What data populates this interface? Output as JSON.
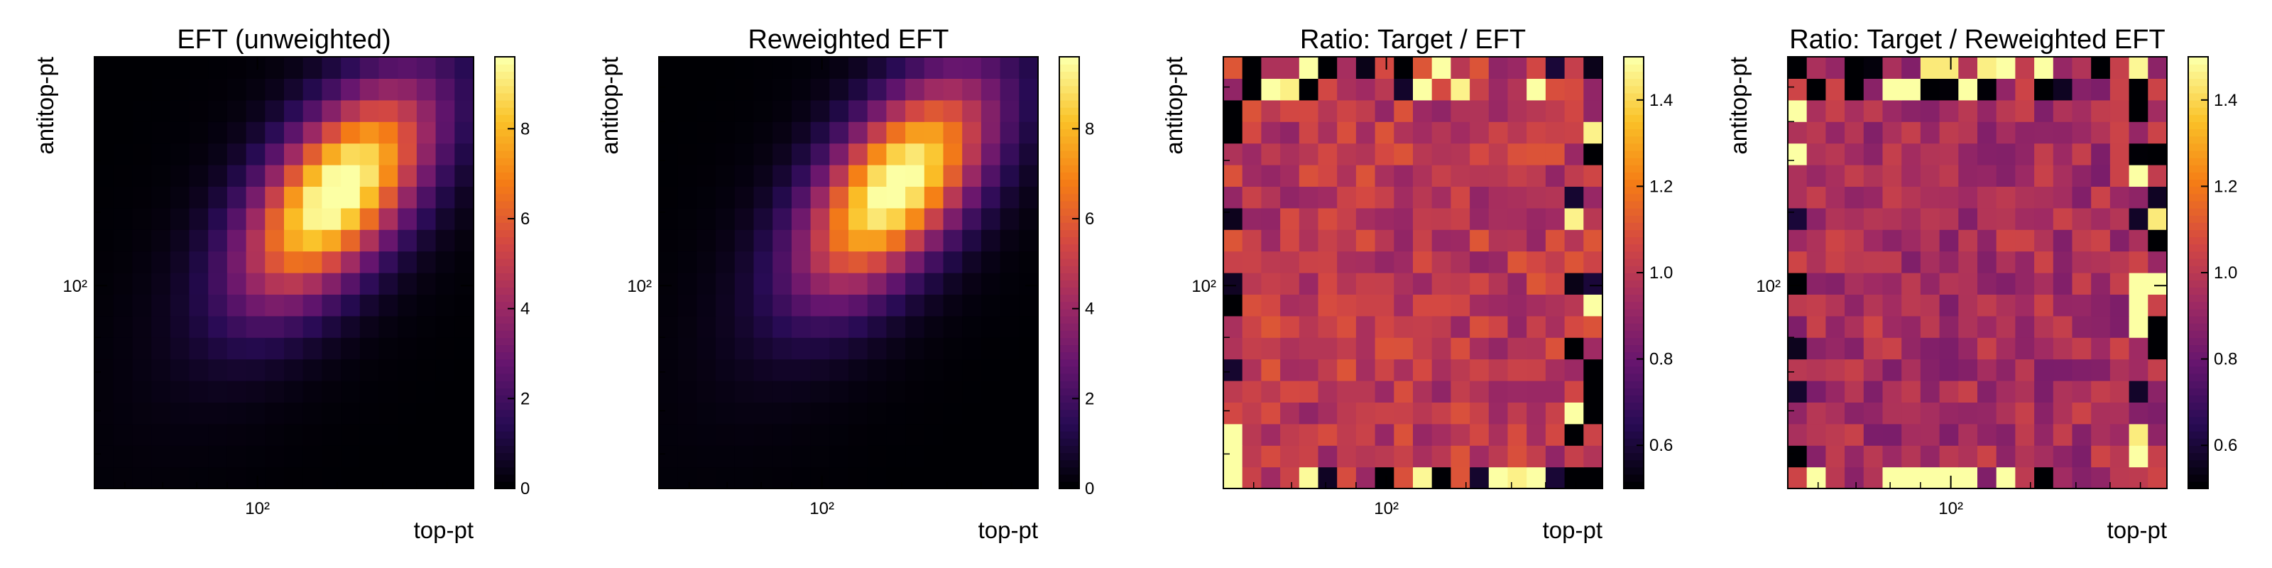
{
  "colormap": "inferno",
  "grid_size": 20,
  "chart_data": [
    {
      "type": "heatmap",
      "title": "EFT (unweighted)",
      "xlabel": "top-pt",
      "ylabel": "antitop-pt",
      "x_ticklabels": [
        "10²"
      ],
      "y_ticklabels": [
        "10²"
      ],
      "x_scale": "log",
      "y_scale": "log",
      "colorbar": {
        "min": 0,
        "max": 9.6,
        "ticks": [
          0,
          2,
          4,
          6,
          8
        ]
      },
      "peak": {
        "x_bin": 12.8,
        "y_bin": 13.7,
        "value": 9.6
      },
      "grid": false
    },
    {
      "type": "heatmap",
      "title": "Reweighted EFT",
      "xlabel": "top-pt",
      "ylabel": "antitop-pt",
      "x_ticklabels": [
        "10²"
      ],
      "y_ticklabels": [
        "10²"
      ],
      "x_scale": "log",
      "y_scale": "log",
      "colorbar": {
        "min": 0,
        "max": 9.6,
        "ticks": [
          0,
          2,
          4,
          6,
          8
        ]
      },
      "peak": {
        "x_bin": 12.5,
        "y_bin": 14.0,
        "value": 9.4
      },
      "grid": false
    },
    {
      "type": "heatmap",
      "title": "Ratio: Target / EFT",
      "xlabel": "top-pt",
      "ylabel": "antitop-pt",
      "x_ticklabels": [
        "10²"
      ],
      "y_ticklabels": [
        "10²"
      ],
      "x_scale": "log",
      "y_scale": "log",
      "colorbar": {
        "min": 0.5,
        "max": 1.5,
        "ticks": [
          0.6,
          0.8,
          1.0,
          1.2,
          1.4
        ],
        "tick_labels": [
          "0.6",
          "0.8",
          "1.0",
          "1.2",
          "1.4"
        ]
      },
      "typical_value": 1.0,
      "grid": false
    },
    {
      "type": "heatmap",
      "title": "Ratio: Target / Reweighted EFT",
      "xlabel": "top-pt",
      "ylabel": "antitop-pt",
      "x_ticklabels": [
        "10²"
      ],
      "y_ticklabels": [
        "10²"
      ],
      "x_scale": "log",
      "y_scale": "log",
      "colorbar": {
        "min": 0.5,
        "max": 1.5,
        "ticks": [
          0.6,
          0.8,
          1.0,
          1.2,
          1.4
        ],
        "tick_labels": [
          "0.6",
          "0.8",
          "1.0",
          "1.2",
          "1.4"
        ]
      },
      "typical_value": 0.95,
      "grid": false
    }
  ]
}
